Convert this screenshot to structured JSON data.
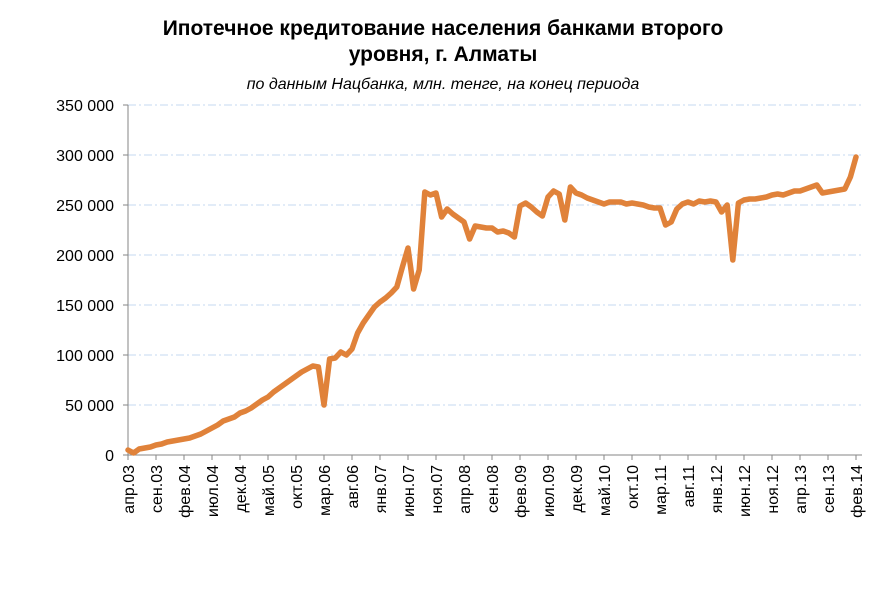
{
  "chart_data": {
    "type": "line",
    "title": "Ипотечное кредитование населения банками второго уровня, г. Алматы",
    "title_lines": [
      "Ипотечное кредитование населения банками второго",
      "уровня, г. Алматы"
    ],
    "subtitle": "по данным Нацбанка, млн. тенге, на конец периода",
    "xlabel": "",
    "ylabel": "",
    "ylim": [
      0,
      350000
    ],
    "y_ticks": [
      0,
      50000,
      100000,
      150000,
      200000,
      250000,
      300000,
      350000
    ],
    "y_tick_labels": [
      "0",
      "50 000",
      "100 000",
      "150 000",
      "200 000",
      "250 000",
      "300 000",
      "350 000"
    ],
    "x_start": "апр.03",
    "x_end": "фев.14",
    "x_tick_labels": [
      "апр.03",
      "сен.03",
      "фев.04",
      "июл.04",
      "дек.04",
      "май.05",
      "окт.05",
      "мар.06",
      "авг.06",
      "янв.07",
      "июн.07",
      "ноя.07",
      "апр.08",
      "сен.08",
      "фев.09",
      "июл.09",
      "дек.09",
      "май.10",
      "окт.10",
      "мар.11",
      "авг.11",
      "янв.12",
      "июн.12",
      "ноя.12",
      "апр.13",
      "сен.13",
      "фев.14"
    ],
    "x_tick_every_months": 5,
    "grid": true,
    "grid_color": "#c6d9f1",
    "line_color": "#e0823a",
    "series": [
      {
        "values": [
          5000,
          2000,
          6000,
          7000,
          8000,
          10000,
          11000,
          13000,
          14000,
          15000,
          16000,
          17000,
          19000,
          21000,
          24000,
          27000,
          30000,
          34000,
          36000,
          38000,
          42000,
          44000,
          47000,
          51000,
          55000,
          58000,
          63000,
          67000,
          71000,
          75000,
          79000,
          83000,
          86000,
          89000,
          88000,
          50000,
          96000,
          97000,
          103000,
          100000,
          106000,
          122000,
          132000,
          140000,
          148000,
          153000,
          157000,
          162000,
          168000,
          188000,
          207000,
          166000,
          185000,
          263000,
          260000,
          262000,
          238000,
          246000,
          241000,
          237000,
          233000,
          216000,
          229000,
          228000,
          227000,
          227000,
          223000,
          224000,
          222000,
          218000,
          249000,
          252000,
          248000,
          243000,
          239000,
          258000,
          264000,
          261000,
          235000,
          268000,
          262000,
          260000,
          257000,
          255000,
          253000,
          251000,
          253000,
          253000,
          253000,
          251000,
          252000,
          251000,
          250000,
          248000,
          247000,
          247000,
          230000,
          233000,
          246000,
          251000,
          253000,
          251000,
          254000,
          253000,
          254000,
          253000,
          243000,
          250000,
          195000,
          252000,
          255000,
          256000,
          256000,
          257000,
          258000,
          260000,
          261000,
          260000,
          262000,
          264000,
          264000,
          266000,
          268000,
          270000,
          262000,
          263000,
          264000,
          265000,
          266000,
          278000,
          298000
        ]
      }
    ]
  }
}
